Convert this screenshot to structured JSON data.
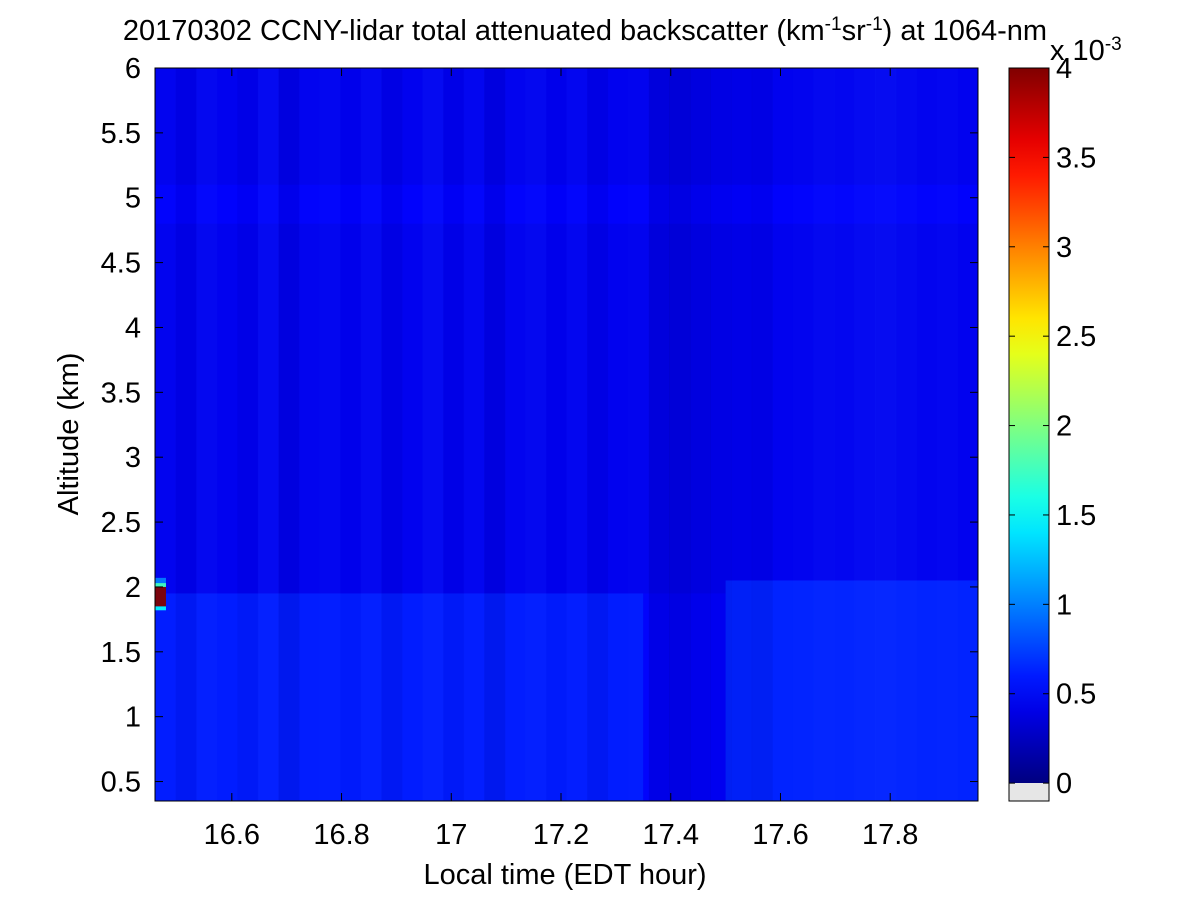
{
  "chart_data": {
    "type": "heatmap",
    "title": {
      "parts": [
        {
          "text": "20170302 CCNY-lidar total attenuated backscatter (km",
          "sup": false
        },
        {
          "text": "-1",
          "sup": true
        },
        {
          "text": "sr",
          "sup": false
        },
        {
          "text": "-1",
          "sup": true
        },
        {
          "text": ") at 1064-nm",
          "sup": false
        }
      ]
    },
    "xlabel": "Local time (EDT hour)",
    "ylabel": "Altitude (km)",
    "xlim": [
      16.46,
      17.96
    ],
    "ylim": [
      0.35,
      6.0
    ],
    "xticks": [
      16.6,
      16.8,
      17.0,
      17.2,
      17.4,
      17.6,
      17.8
    ],
    "xtick_labels": [
      "16.6",
      "16.8",
      "17",
      "17.2",
      "17.4",
      "17.6",
      "17.8"
    ],
    "yticks": [
      0.5,
      1.0,
      1.5,
      2.0,
      2.5,
      3.0,
      3.5,
      4.0,
      4.5,
      5.0,
      5.5,
      6.0
    ],
    "ytick_labels": [
      "0.5",
      "1",
      "1.5",
      "2",
      "2.5",
      "3",
      "3.5",
      "4",
      "4.5",
      "5",
      "5.5",
      "6"
    ],
    "colorbar": {
      "colormap": "jet",
      "clim": [
        -0.0001,
        0.004
      ],
      "ticks": [
        0,
        0.0005,
        0.001,
        0.0015,
        0.002,
        0.0025,
        0.003,
        0.0035,
        0.004
      ],
      "tick_labels": [
        "0",
        "0.5",
        "1",
        "1.5",
        "2",
        "2.5",
        "3",
        "3.5",
        "4"
      ],
      "exponent_label": {
        "base": "x 10",
        "exponent": "-3"
      }
    },
    "regions": [
      {
        "x": [
          16.46,
          17.96
        ],
        "y": [
          0.35,
          6.0
        ],
        "value": 0.00035
      },
      {
        "x": [
          16.46,
          17.35
        ],
        "y": [
          0.35,
          1.95
        ],
        "value": 0.00052
      },
      {
        "x": [
          17.35,
          17.96
        ],
        "y": [
          0.35,
          1.95
        ],
        "value": 0.0004
      },
      {
        "x": [
          17.5,
          17.96
        ],
        "y": [
          0.35,
          2.05
        ],
        "value": 0.00055
      },
      {
        "x": [
          16.46,
          17.96
        ],
        "y": [
          4.8,
          5.1
        ],
        "value": 0.0004
      },
      {
        "x": [
          16.46,
          16.48
        ],
        "y": [
          1.85,
          2.0
        ],
        "value": 0.004
      },
      {
        "x": [
          16.46,
          16.48
        ],
        "y": [
          1.82,
          1.85
        ],
        "value": 0.0014
      },
      {
        "x": [
          16.46,
          16.48
        ],
        "y": [
          2.0,
          2.03
        ],
        "value": 0.0017
      },
      {
        "x": [
          16.46,
          16.48
        ],
        "y": [
          2.03,
          2.07
        ],
        "value": 0.0009
      }
    ],
    "column_variation": [
      2e-05,
      -3e-05,
      4e-05,
      1e-05,
      -2e-05,
      5e-05,
      -4e-05,
      2e-05,
      3e-05,
      -1e-05,
      4e-05,
      -3e-05,
      1e-05,
      5e-05,
      -2e-05,
      3e-05,
      -4e-05,
      2e-05,
      4e-05,
      -1e-05,
      3e-05,
      -3e-05,
      1e-05,
      2e-05,
      -5e-05,
      -6e-05,
      -4e-05,
      -3e-05,
      -2e-05,
      -3e-05,
      1e-05,
      2e-05,
      4e-05,
      3e-05,
      5e-05,
      6e-05,
      4e-05,
      2e-05,
      3e-05,
      1e-05
    ]
  }
}
